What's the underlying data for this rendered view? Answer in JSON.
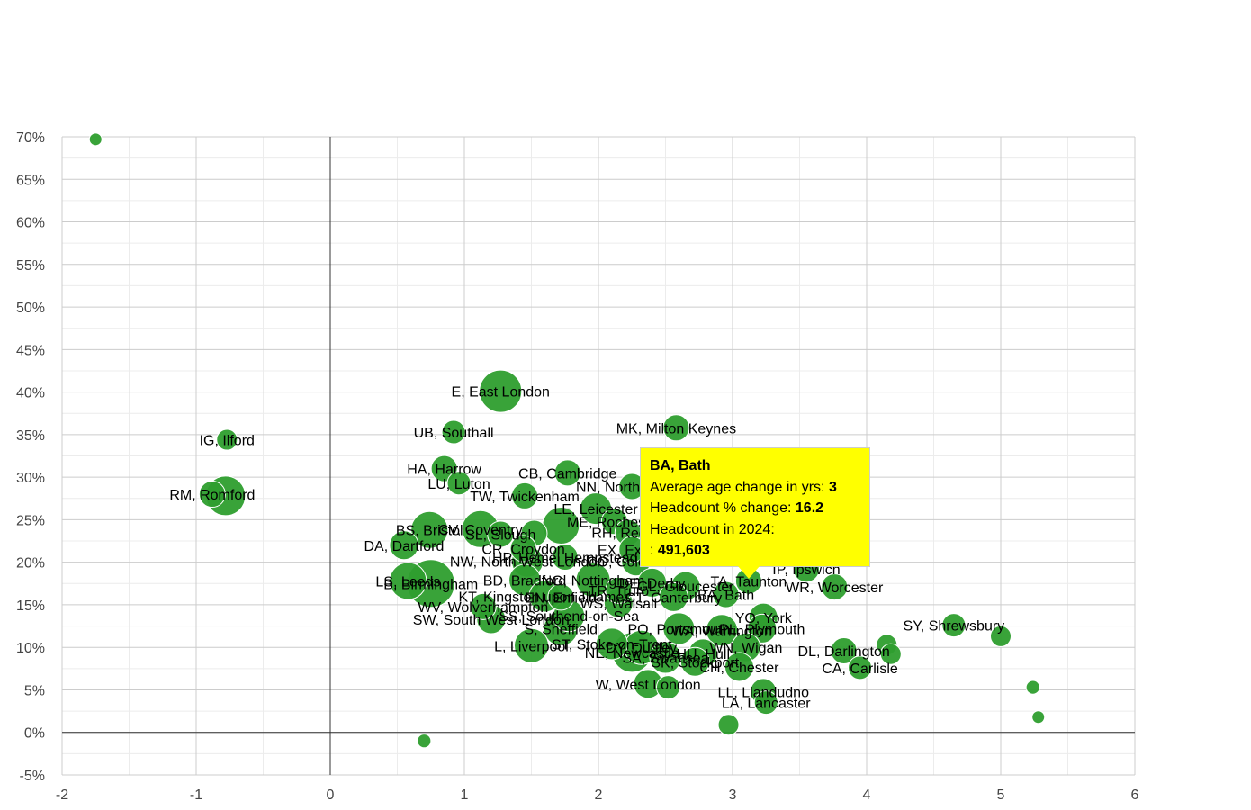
{
  "chart_data": {
    "type": "scatter",
    "title": "",
    "xlabel": "",
    "ylabel": "",
    "xlim": [
      -2,
      6
    ],
    "ylim": [
      -5,
      70
    ],
    "x_ticks": [
      "-2",
      "-1",
      "0",
      "1",
      "2",
      "3",
      "4",
      "5",
      "6"
    ],
    "y_ticks": [
      "-5%",
      "0%",
      "5%",
      "10%",
      "15%",
      "20%",
      "25%",
      "30%",
      "35%",
      "40%",
      "45%",
      "50%",
      "55%",
      "60%",
      "65%",
      "70%"
    ],
    "grid": true,
    "bubble_color": "#2e9e2e",
    "points": [
      {
        "label": "",
        "x": -1.75,
        "y": 69.7,
        "size": 0.1
      },
      {
        "label": "IG, Ilford",
        "x": -0.77,
        "y": 34.4,
        "size": 0.25
      },
      {
        "label": "RM, Romford",
        "x": -0.88,
        "y": 28.0,
        "size": 0.35
      },
      {
        "label": "",
        "x": -0.78,
        "y": 27.8,
        "size": 0.6
      },
      {
        "label": "E, East London",
        "x": 1.27,
        "y": 40.1,
        "size": 0.65
      },
      {
        "label": "UB, Southall",
        "x": 0.92,
        "y": 35.3,
        "size": 0.3
      },
      {
        "label": "MK, Milton Keynes",
        "x": 2.58,
        "y": 35.8,
        "size": 0.35
      },
      {
        "label": "HA, Harrow",
        "x": 0.85,
        "y": 31.0,
        "size": 0.35
      },
      {
        "label": "LU, Luton",
        "x": 0.96,
        "y": 29.3,
        "size": 0.3
      },
      {
        "label": "CB, Cambridge",
        "x": 1.77,
        "y": 30.5,
        "size": 0.35
      },
      {
        "label": "TW, Twickenham",
        "x": 1.45,
        "y": 27.8,
        "size": 0.35
      },
      {
        "label": "NN, Northampton",
        "x": 2.25,
        "y": 28.9,
        "size": 0.35
      },
      {
        "label": "LE, Leicester",
        "x": 1.98,
        "y": 26.3,
        "size": 0.45
      },
      {
        "label": "ME, Rochester",
        "x": 2.12,
        "y": 24.8,
        "size": 0.35
      },
      {
        "label": "RH, Redhill",
        "x": 2.22,
        "y": 23.5,
        "size": 0.35
      },
      {
        "label": "BS, Bristol",
        "x": 0.74,
        "y": 23.8,
        "size": 0.55
      },
      {
        "label": "CV, Coventry",
        "x": 1.12,
        "y": 23.9,
        "size": 0.55
      },
      {
        "label": "SL, Slough",
        "x": 1.27,
        "y": 23.3,
        "size": 0.35
      },
      {
        "label": "",
        "x": 1.72,
        "y": 24.3,
        "size": 0.55
      },
      {
        "label": "",
        "x": 1.52,
        "y": 23.4,
        "size": 0.35
      },
      {
        "label": "DA, Dartford",
        "x": 0.55,
        "y": 22.0,
        "size": 0.4
      },
      {
        "label": "CR, Croydon",
        "x": 1.44,
        "y": 21.6,
        "size": 0.35
      },
      {
        "label": "EX, Exeter",
        "x": 2.25,
        "y": 21.5,
        "size": 0.35
      },
      {
        "label": "NW, North West London",
        "x": 1.47,
        "y": 20.1,
        "size": 0.45
      },
      {
        "label": "HP, Hemel Hempstead",
        "x": 1.75,
        "y": 20.6,
        "size": 0.35
      },
      {
        "label": "CO, Colchester",
        "x": 2.28,
        "y": 20.1,
        "size": 0.4
      },
      {
        "label": "IP, Ipswich",
        "x": 3.55,
        "y": 19.2,
        "size": 0.35
      },
      {
        "label": "LS, Leeds",
        "x": 0.58,
        "y": 17.8,
        "size": 0.55
      },
      {
        "label": "B, Birmingham",
        "x": 0.75,
        "y": 17.5,
        "size": 0.75
      },
      {
        "label": "BD, Bradford",
        "x": 1.45,
        "y": 17.9,
        "size": 0.45
      },
      {
        "label": "NG, Nottingham",
        "x": 1.96,
        "y": 17.9,
        "size": 0.5
      },
      {
        "label": "DE, Derby",
        "x": 2.4,
        "y": 17.6,
        "size": 0.4
      },
      {
        "label": "TA, Taunton",
        "x": 3.12,
        "y": 17.8,
        "size": 0.35
      },
      {
        "label": "GL, Gloucester",
        "x": 2.65,
        "y": 17.2,
        "size": 0.4
      },
      {
        "label": "WR, Worcester",
        "x": 3.76,
        "y": 17.1,
        "size": 0.35
      },
      {
        "label": "TR, Truro",
        "x": 2.15,
        "y": 16.7,
        "size": 0.35
      },
      {
        "label": "CT, Canterbury",
        "x": 2.56,
        "y": 15.9,
        "size": 0.4
      },
      {
        "label": "BA, Bath",
        "x": 2.95,
        "y": 16.2,
        "size": 0.35
      },
      {
        "label": "KT, Kingston upon Thames",
        "x": 1.6,
        "y": 16.0,
        "size": 0.45
      },
      {
        "label": "EN, Enfield",
        "x": 1.72,
        "y": 15.9,
        "size": 0.35
      },
      {
        "label": "WS, Walsall",
        "x": 2.15,
        "y": 15.2,
        "size": 0.4
      },
      {
        "label": "WV, Wolverhampton",
        "x": 1.14,
        "y": 14.8,
        "size": 0.35
      },
      {
        "label": "SW, South West London",
        "x": 1.2,
        "y": 13.3,
        "size": 0.4
      },
      {
        "label": "SS, Southend-on-Sea",
        "x": 1.78,
        "y": 13.7,
        "size": 0.45
      },
      {
        "label": "YO, York",
        "x": 3.23,
        "y": 13.5,
        "size": 0.4
      },
      {
        "label": "S, Sheffield",
        "x": 1.72,
        "y": 12.2,
        "size": 0.5
      },
      {
        "label": "PO, Portsmouth",
        "x": 2.6,
        "y": 12.2,
        "size": 0.45
      },
      {
        "label": "WA, Warrington",
        "x": 2.92,
        "y": 12.0,
        "size": 0.45
      },
      {
        "label": "PL, Plymouth",
        "x": 3.22,
        "y": 12.2,
        "size": 0.4
      },
      {
        "label": "WN, Wigan",
        "x": 3.1,
        "y": 10.0,
        "size": 0.4
      },
      {
        "label": "DY, Dudley",
        "x": 2.32,
        "y": 10.0,
        "size": 0.5
      },
      {
        "label": "ST, Stoke-on-Trent",
        "x": 2.1,
        "y": 10.4,
        "size": 0.45
      },
      {
        "label": "HU, Hull",
        "x": 2.78,
        "y": 9.3,
        "size": 0.4
      },
      {
        "label": "L, Liverpool",
        "x": 1.5,
        "y": 10.2,
        "size": 0.5
      },
      {
        "label": "NE, Newcastle",
        "x": 2.25,
        "y": 9.4,
        "size": 0.6
      },
      {
        "label": "SA, Swansea",
        "x": 2.5,
        "y": 8.8,
        "size": 0.45
      },
      {
        "label": "SK, Stockport",
        "x": 2.72,
        "y": 8.3,
        "size": 0.4
      },
      {
        "label": "DL, Darlington",
        "x": 3.83,
        "y": 9.6,
        "size": 0.35
      },
      {
        "label": "",
        "x": 4.15,
        "y": 10.3,
        "size": 0.25
      },
      {
        "label": "",
        "x": 4.18,
        "y": 9.2,
        "size": 0.25
      },
      {
        "label": "CH, Chester",
        "x": 3.05,
        "y": 7.7,
        "size": 0.4
      },
      {
        "label": "CA, Carlisle",
        "x": 3.95,
        "y": 7.6,
        "size": 0.3
      },
      {
        "label": "SY, Shrewsbury",
        "x": 4.65,
        "y": 12.6,
        "size": 0.3
      },
      {
        "label": "",
        "x": 5.0,
        "y": 11.3,
        "size": 0.25
      },
      {
        "label": "W, West London",
        "x": 2.37,
        "y": 5.7,
        "size": 0.4
      },
      {
        "label": "",
        "x": 2.52,
        "y": 5.3,
        "size": 0.3
      },
      {
        "label": "LL, Llandudno",
        "x": 3.23,
        "y": 4.8,
        "size": 0.35
      },
      {
        "label": "LA, Lancaster",
        "x": 3.25,
        "y": 3.5,
        "size": 0.3
      },
      {
        "label": "",
        "x": 2.97,
        "y": 0.9,
        "size": 0.25
      },
      {
        "label": "",
        "x": 5.24,
        "y": 5.3,
        "size": 0.12
      },
      {
        "label": "",
        "x": 5.28,
        "y": 1.8,
        "size": 0.1
      },
      {
        "label": "",
        "x": 0.7,
        "y": -1.0,
        "size": 0.12
      }
    ],
    "tooltip": {
      "title": "BA, Bath",
      "rows": [
        {
          "label": "Average age change in yrs:",
          "value": "3"
        },
        {
          "label": "Headcount % change:",
          "value": "16.2"
        },
        {
          "label": "Headcount in 2024:",
          "value": ""
        },
        {
          "label": ":",
          "value": "491,603"
        }
      ]
    }
  }
}
